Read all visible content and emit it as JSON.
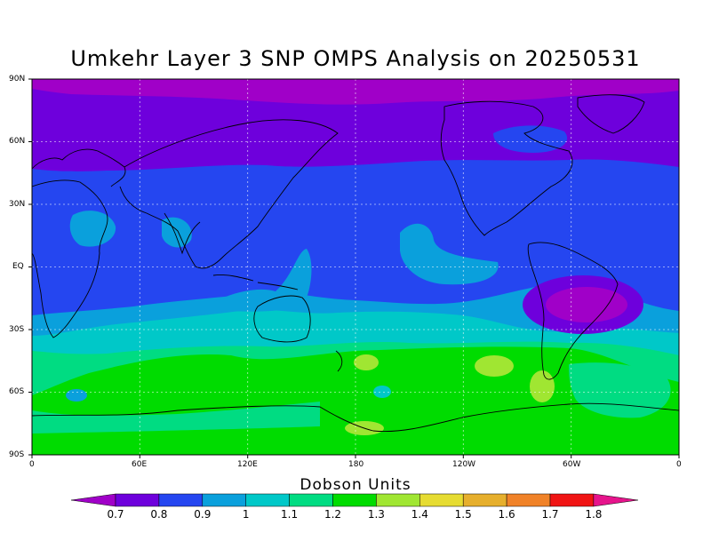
{
  "title": "Umkehr Layer 3 SNP OMPS Analysis on 20250531",
  "axes": {
    "lat_labels": [
      "90N",
      "60N",
      "30N",
      "EQ",
      "30S",
      "60S",
      "90S"
    ],
    "lon_labels": [
      "0",
      "60E",
      "120E",
      "180",
      "120W",
      "60W",
      "0"
    ]
  },
  "colorbar": {
    "title": "Dobson Units",
    "levels": [
      "0.7",
      "0.8",
      "0.9",
      "1",
      "1.1",
      "1.2",
      "1.3",
      "1.4",
      "1.5",
      "1.6",
      "1.7",
      "1.8"
    ],
    "colors": {
      "below": "#a000c8",
      "bins": [
        "#6e00dc",
        "#2546f0",
        "#0aa0dc",
        "#00c8c8",
        "#00dc82",
        "#00dc00",
        "#a0e632",
        "#e6dc32",
        "#e6af2d",
        "#f08228",
        "#f01414"
      ],
      "above": "#e6148c"
    }
  },
  "field_colors": {
    "polar_north": "#a000c8",
    "north_high_lat": "#6e00dc",
    "tropics": "#2546f0",
    "low_band": "#0aa0dc",
    "mid_band": "#00c8c8",
    "subpolar_band": "#00dc82",
    "southern_ocean": "#00dc00",
    "local_max": "#a0e632",
    "anomaly_core": "#a000c8"
  }
}
